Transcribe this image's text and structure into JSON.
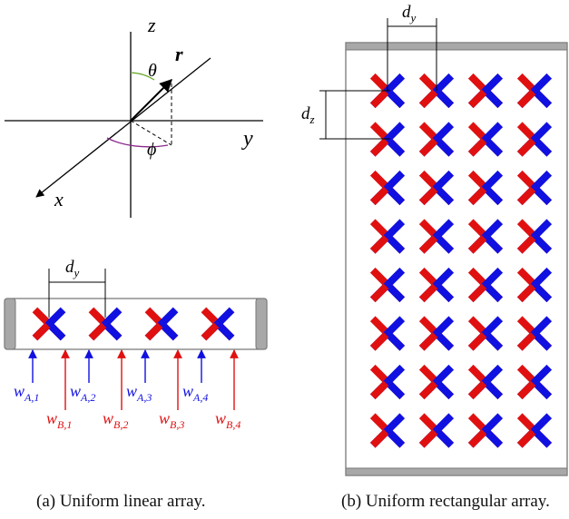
{
  "coords": {
    "axis_x": "x",
    "axis_y": "y",
    "axis_z": "z",
    "vector": "r",
    "angle_theta": "θ",
    "angle_phi": "ϕ"
  },
  "ula": {
    "spacing_base": "d",
    "spacing_sub": "y",
    "weights_a": [
      {
        "base": "w",
        "sub": "A,1"
      },
      {
        "base": "w",
        "sub": "A,2"
      },
      {
        "base": "w",
        "sub": "A,3"
      },
      {
        "base": "w",
        "sub": "A,4"
      }
    ],
    "weights_b": [
      {
        "base": "w",
        "sub": "B,1"
      },
      {
        "base": "w",
        "sub": "B,2"
      },
      {
        "base": "w",
        "sub": "B,3"
      },
      {
        "base": "w",
        "sub": "B,4"
      }
    ],
    "caption": "(a) Uniform linear array."
  },
  "ura": {
    "spacing_y_base": "d",
    "spacing_y_sub": "y",
    "spacing_z_base": "d",
    "spacing_z_sub": "z",
    "rows": 8,
    "cols": 4,
    "caption": "(b) Uniform rectangular array."
  },
  "colors": {
    "pol_a": "#1010e0",
    "pol_b": "#e01010",
    "theta_arc": "#6aa82a",
    "phi_arc": "#8a2a8a",
    "frame": "#777777",
    "bar": "#a8a8a8"
  }
}
